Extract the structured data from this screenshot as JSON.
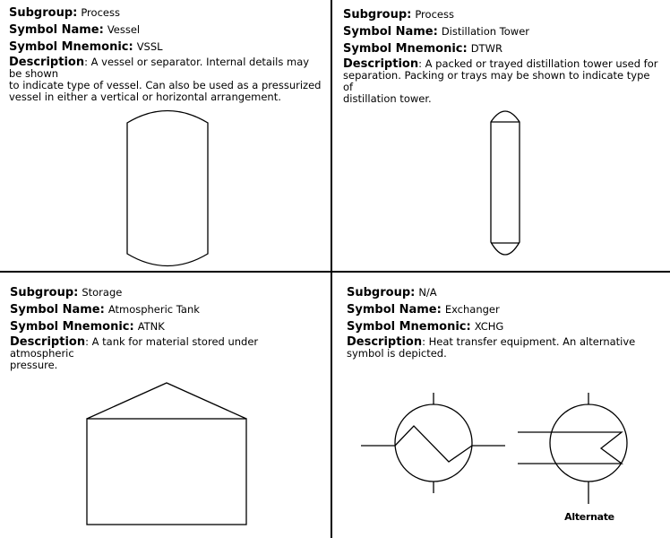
{
  "labels": {
    "subgroup": "Subgroup:",
    "symbol_name": "Symbol Name:",
    "symbol_mnemonic": "Symbol Mnemonic:",
    "description": "Description"
  },
  "cells": [
    {
      "subgroup": "Process",
      "name": "Vessel",
      "mnemonic": "VSSL",
      "desc_sep": ":",
      "description_lines": [
        "A vessel or separator. Internal details may be shown",
        "to indicate type of vessel. Can also be used as a pressurized",
        "vessel in either a vertical or horizontal arrangement."
      ]
    },
    {
      "subgroup": "Process",
      "name": "Distillation Tower",
      "mnemonic": "DTWR",
      "desc_sep": ":",
      "description_lines": [
        "A packed or trayed distillation tower used for",
        "separation. Packing or trays may be shown to indicate type of",
        "distillation tower."
      ]
    },
    {
      "subgroup": "Storage",
      "name": "Atmospheric Tank",
      "mnemonic": "ATNK",
      "desc_sep": ":",
      "description_lines": [
        "A tank for material stored under atmospheric",
        "pressure."
      ]
    },
    {
      "subgroup": "N/A",
      "name": "Exchanger",
      "mnemonic": "XCHG",
      "desc_sep": ":",
      "description_lines": [
        "Heat transfer equipment. An alternative",
        "symbol is depicted."
      ],
      "alternate_label": "Alternate"
    }
  ]
}
